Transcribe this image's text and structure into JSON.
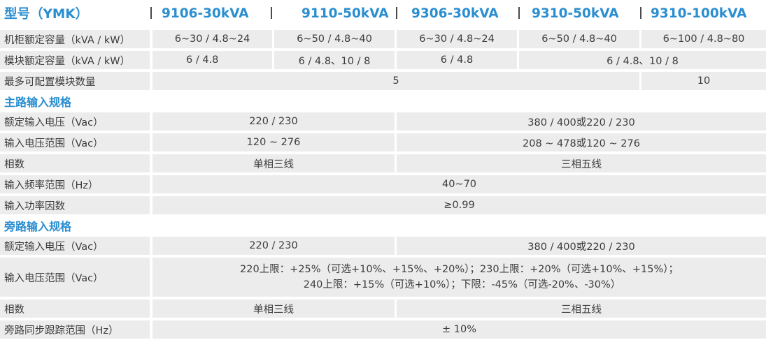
{
  "header": {
    "model_label": "型号（YMK）",
    "models": [
      "9106-30kVA",
      "9110-50kVA",
      "9306-30kVA",
      "9310-50kVA",
      "9310-100kVA"
    ]
  },
  "rows_top": {
    "cabinet_capacity": {
      "label": "机柜额定容量（kVA / kW）",
      "values": [
        "6~30 / 4.8~24",
        "6~50 / 4.8~40",
        "6~30 / 4.8~24",
        "6~50 / 4.8~40",
        "6~100 / 4.8~80"
      ]
    },
    "module_capacity": {
      "label": "模块额定容量（kVA / kW）",
      "values": [
        "6 / 4.8",
        "6 / 4.8、10 / 8",
        "6 / 4.8",
        "6 / 4.8、10 / 8"
      ]
    },
    "max_modules": {
      "label": "最多可配置模块数量",
      "values": [
        "5",
        "10"
      ]
    }
  },
  "main_input": {
    "title": "主路输入规格",
    "rated_voltage": {
      "label": "额定输入电压（Vac）",
      "single": "220 / 230",
      "three": "380 / 400或220 / 230"
    },
    "voltage_range": {
      "label": "输入电压范围（Vac）",
      "single": "120 ~ 276",
      "three": "208 ~ 478或120 ~ 276"
    },
    "phase": {
      "label": "相数",
      "single": "单相三线",
      "three": "三相五线"
    },
    "frequency_range": {
      "label": "输入频率范围（Hz）",
      "value": "40~70"
    },
    "power_factor": {
      "label": "输入功率因数",
      "value": "≥0.99"
    }
  },
  "bypass_input": {
    "title": "旁路输入规格",
    "rated_voltage": {
      "label": "额定输入电压（Vac）",
      "single": "220 / 230",
      "three": "380 / 400或220 / 230"
    },
    "voltage_range": {
      "label": "输入电压范围（Vac）",
      "line1": "220上限：+25%（可选+10%、+15%、+20%）；230上限：+20%（可选+10%、+15%）；",
      "line2": "240上限：+15%（可选+10%）；下限：-45%（可选-20%、-30%）"
    },
    "phase": {
      "label": "相数",
      "single": "单相三线",
      "three": "三相五线"
    },
    "sync_range": {
      "label": "旁路同步跟踪范围（Hz）",
      "value": "± 10%"
    }
  },
  "colors": {
    "accent": "#2a8ed0",
    "row_bg": "#ececec",
    "text": "#3c3c3c",
    "separator": "#4a4a4a"
  }
}
